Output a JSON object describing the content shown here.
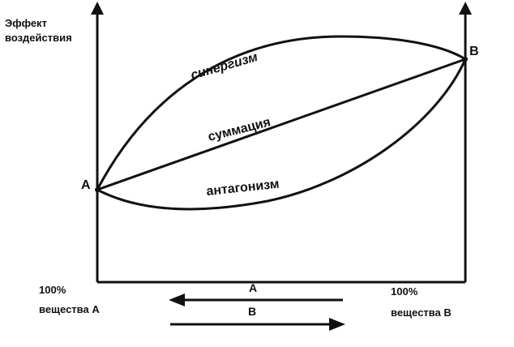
{
  "figure": {
    "y_axis_label_line1": "Эффект",
    "y_axis_label_line2": "воздействия",
    "point_a": "A",
    "point_b": "B",
    "curve_synergy": "синергизм",
    "curve_summation": "суммация",
    "curve_antagonism": "антагонизм",
    "left_label_line1": "100%",
    "left_label_line2": "вещества А",
    "right_label_line1": "100%",
    "right_label_line2": "вещества В",
    "arrow_left_label": "A",
    "arrow_right_label": "B"
  },
  "colors": {
    "ink": "#111111",
    "background": "#ffffff"
  }
}
